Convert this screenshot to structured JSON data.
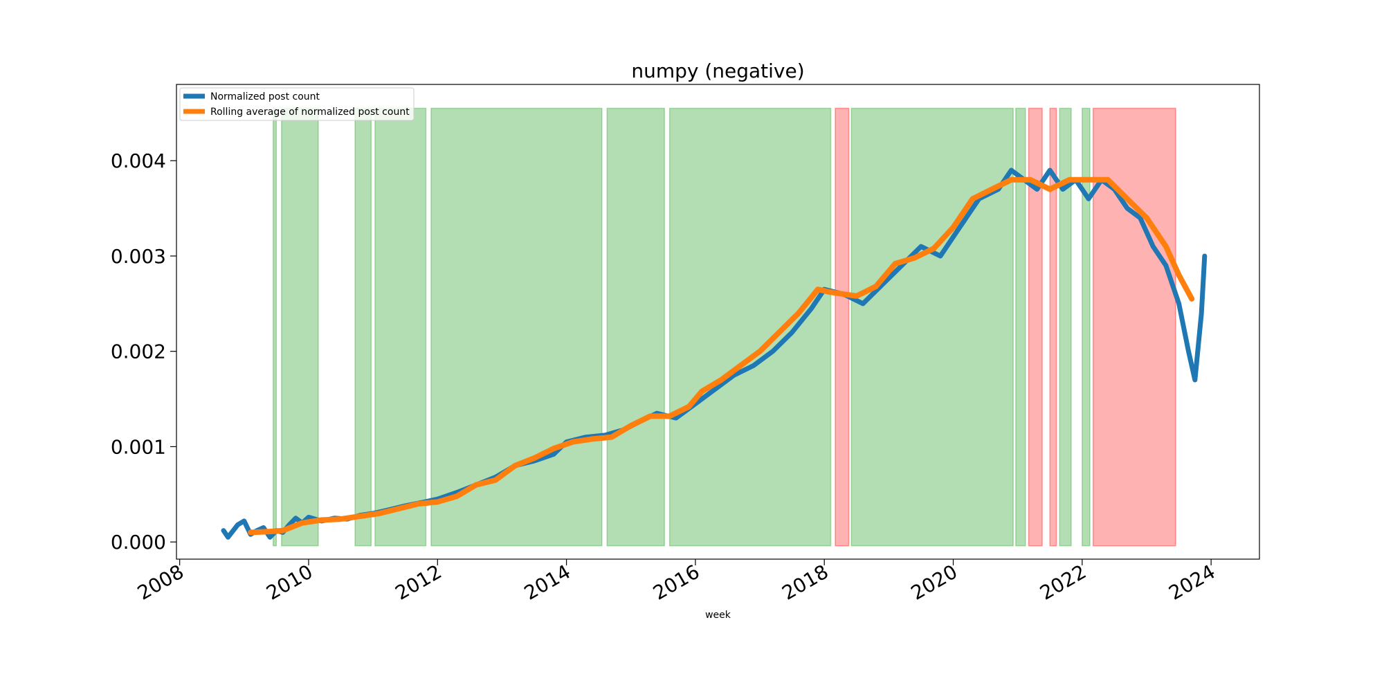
{
  "chart_data": {
    "type": "line",
    "title": "numpy (negative)",
    "xlabel": "week",
    "ylabel": "",
    "xlim": [
      2007.95,
      2024.75
    ],
    "ylim": [
      -0.00018,
      0.0048
    ],
    "x_ticks": [
      2008,
      2010,
      2012,
      2014,
      2016,
      2018,
      2020,
      2022,
      2024
    ],
    "y_ticks": [
      0.0,
      0.001,
      0.002,
      0.003,
      0.004
    ],
    "y_tick_labels": [
      "0.000",
      "0.001",
      "0.002",
      "0.003",
      "0.004"
    ],
    "grid": false,
    "legend_location": "upper left",
    "series": [
      {
        "name": "Normalized post count",
        "color": "#1f77b4",
        "x": [
          2008.68,
          2008.75,
          2008.9,
          2009.0,
          2009.1,
          2009.2,
          2009.3,
          2009.4,
          2009.5,
          2009.6,
          2009.7,
          2009.8,
          2009.9,
          2010.0,
          2010.2,
          2010.4,
          2010.6,
          2010.8,
          2011.0,
          2011.2,
          2011.5,
          2011.8,
          2012.0,
          2012.3,
          2012.6,
          2012.9,
          2013.2,
          2013.5,
          2013.8,
          2014.0,
          2014.3,
          2014.6,
          2014.9,
          2015.1,
          2015.4,
          2015.7,
          2016.0,
          2016.3,
          2016.6,
          2016.9,
          2017.2,
          2017.5,
          2017.8,
          2018.0,
          2018.3,
          2018.6,
          2018.9,
          2019.2,
          2019.5,
          2019.8,
          2020.1,
          2020.4,
          2020.7,
          2020.9,
          2021.1,
          2021.3,
          2021.5,
          2021.7,
          2021.9,
          2022.1,
          2022.3,
          2022.5,
          2022.7,
          2022.9,
          2023.1,
          2023.3,
          2023.5,
          2023.65,
          2023.75,
          2023.85,
          2023.9
        ],
        "y": [
          0.00012,
          5e-05,
          0.00018,
          0.00022,
          8e-05,
          0.00012,
          0.00015,
          5e-05,
          0.00012,
          0.0001,
          0.00018,
          0.00025,
          0.0002,
          0.00026,
          0.00022,
          0.00025,
          0.00024,
          0.00028,
          0.0003,
          0.00033,
          0.00038,
          0.00042,
          0.00045,
          0.00052,
          0.0006,
          0.00068,
          0.0008,
          0.00085,
          0.00092,
          0.00105,
          0.0011,
          0.00112,
          0.00118,
          0.00125,
          0.00135,
          0.0013,
          0.00145,
          0.0016,
          0.00175,
          0.00185,
          0.002,
          0.0022,
          0.00245,
          0.00265,
          0.0026,
          0.0025,
          0.0027,
          0.0029,
          0.0031,
          0.003,
          0.0033,
          0.0036,
          0.0037,
          0.0039,
          0.0038,
          0.0037,
          0.0039,
          0.0037,
          0.0038,
          0.0036,
          0.0038,
          0.0037,
          0.0035,
          0.0034,
          0.0031,
          0.0029,
          0.0025,
          0.002,
          0.0017,
          0.0024,
          0.003
        ]
      },
      {
        "name": "Rolling average of normalized post count",
        "color": "#ff7f0e",
        "x": [
          2009.1,
          2009.4,
          2009.6,
          2009.9,
          2010.2,
          2010.5,
          2010.8,
          2011.1,
          2011.4,
          2011.7,
          2012.0,
          2012.3,
          2012.6,
          2012.9,
          2013.2,
          2013.5,
          2013.8,
          2014.1,
          2014.4,
          2014.7,
          2015.0,
          2015.3,
          2015.6,
          2015.9,
          2016.1,
          2016.4,
          2016.7,
          2017.0,
          2017.3,
          2017.6,
          2017.9,
          2018.1,
          2018.3,
          2018.5,
          2018.8,
          2019.1,
          2019.4,
          2019.7,
          2020.0,
          2020.3,
          2020.6,
          2020.9,
          2021.2,
          2021.5,
          2021.8,
          2022.1,
          2022.4,
          2022.7,
          2023.0,
          2023.3,
          2023.5,
          2023.7
        ],
        "y": [
          0.0001,
          0.00011,
          0.00012,
          0.0002,
          0.00023,
          0.00024,
          0.00027,
          0.0003,
          0.00035,
          0.0004,
          0.00042,
          0.00048,
          0.0006,
          0.00065,
          0.0008,
          0.00088,
          0.00098,
          0.00105,
          0.00108,
          0.0011,
          0.00122,
          0.00132,
          0.00132,
          0.00142,
          0.00158,
          0.0017,
          0.00185,
          0.002,
          0.0022,
          0.0024,
          0.00265,
          0.00262,
          0.0026,
          0.00258,
          0.00268,
          0.00292,
          0.00298,
          0.00308,
          0.0033,
          0.0036,
          0.0037,
          0.0038,
          0.0038,
          0.0037,
          0.0038,
          0.0038,
          0.0038,
          0.0036,
          0.0034,
          0.0031,
          0.0028,
          0.00255
        ]
      }
    ],
    "shaded_regions": [
      {
        "start": 2009.45,
        "end": 2009.5,
        "color": "#2ca02c"
      },
      {
        "start": 2009.58,
        "end": 2010.15,
        "color": "#2ca02c"
      },
      {
        "start": 2010.72,
        "end": 2010.97,
        "color": "#2ca02c"
      },
      {
        "start": 2011.03,
        "end": 2011.82,
        "color": "#2ca02c"
      },
      {
        "start": 2011.9,
        "end": 2014.55,
        "color": "#2ca02c"
      },
      {
        "start": 2014.63,
        "end": 2015.52,
        "color": "#2ca02c"
      },
      {
        "start": 2015.6,
        "end": 2018.1,
        "color": "#2ca02c"
      },
      {
        "start": 2018.17,
        "end": 2018.38,
        "color": "#ff0000"
      },
      {
        "start": 2018.42,
        "end": 2020.93,
        "color": "#2ca02c"
      },
      {
        "start": 2020.97,
        "end": 2021.12,
        "color": "#2ca02c"
      },
      {
        "start": 2021.17,
        "end": 2021.38,
        "color": "#ff0000"
      },
      {
        "start": 2021.5,
        "end": 2021.6,
        "color": "#ff0000"
      },
      {
        "start": 2021.65,
        "end": 2021.83,
        "color": "#2ca02c"
      },
      {
        "start": 2022.0,
        "end": 2022.12,
        "color": "#2ca02c"
      },
      {
        "start": 2022.17,
        "end": 2023.45,
        "color": "#ff0000"
      }
    ]
  }
}
